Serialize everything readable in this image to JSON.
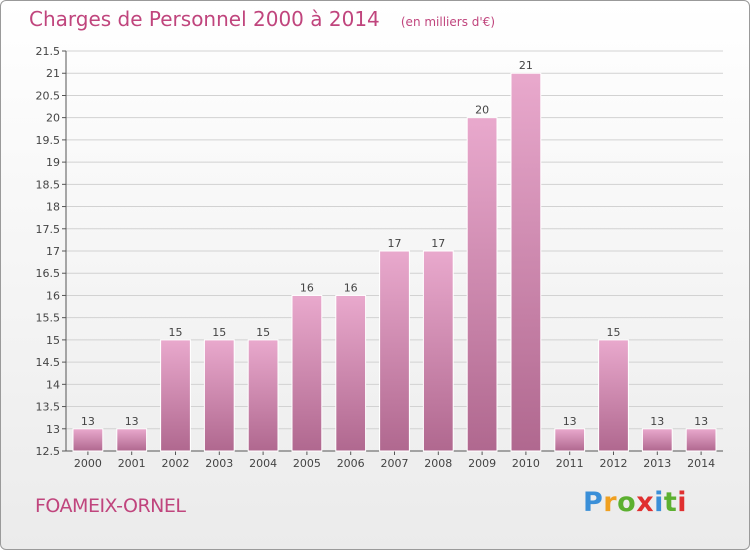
{
  "header": {
    "title": "Charges de Personnel 2000 à 2014",
    "subtitle": "(en milliers d'€)"
  },
  "footer": {
    "place": "FOAMEIX-ORNEL",
    "brand_letters": [
      "P",
      "r",
      "o",
      "x",
      "i",
      "t",
      "i"
    ],
    "brand_colors": [
      "#3a8fd8",
      "#f0a020",
      "#5cb030",
      "#e03030",
      "#3a8fd8",
      "#5cb030",
      "#e03030"
    ]
  },
  "chart_data": {
    "type": "bar",
    "title": "Charges de Personnel 2000 à 2014",
    "subtitle": "(en milliers d'€)",
    "xlabel": "",
    "ylabel": "",
    "categories": [
      "2000",
      "2001",
      "2002",
      "2003",
      "2004",
      "2005",
      "2006",
      "2007",
      "2008",
      "2009",
      "2010",
      "2011",
      "2012",
      "2013",
      "2014"
    ],
    "values": [
      13,
      13,
      15,
      15,
      15,
      16,
      16,
      17,
      17,
      20,
      21,
      13,
      15,
      13,
      13
    ],
    "value_labels": [
      "13",
      "13",
      "15",
      "15",
      "15",
      "16",
      "16",
      "17",
      "17",
      "20",
      "21",
      "13",
      "15",
      "13",
      "13"
    ],
    "ylim": [
      12.5,
      21.5
    ],
    "yticks": [
      12.5,
      13,
      13.5,
      14,
      14.5,
      15,
      15.5,
      16,
      16.5,
      17,
      17.5,
      18,
      18.5,
      19,
      19.5,
      20,
      20.5,
      21,
      21.5
    ],
    "ytick_labels": [
      "12.5",
      "13",
      "13.5",
      "14",
      "14.5",
      "15",
      "15.5",
      "16",
      "16.5",
      "17",
      "17.5",
      "18",
      "18.5",
      "19",
      "19.5",
      "20",
      "20.5",
      "21",
      "21.5"
    ],
    "grid": true,
    "legend": "none",
    "colors": {
      "bar_top": "#e9a9cd",
      "bar_bottom": "#b0688f",
      "bar_edge": "#ffffff",
      "grid": "#d2d2d2",
      "axis": "#555555",
      "title": "#c0457d"
    }
  }
}
